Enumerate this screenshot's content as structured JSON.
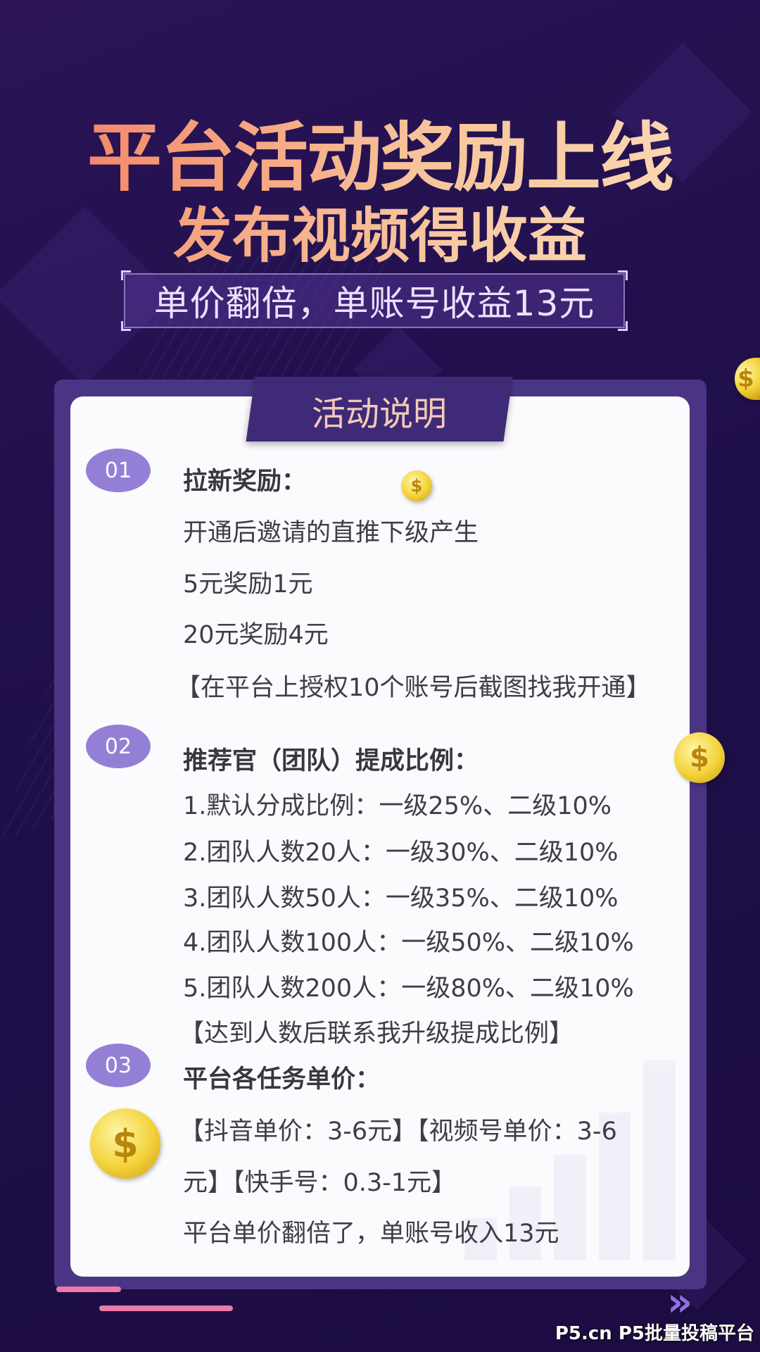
{
  "header": {
    "title": "平台活动奖励上线",
    "subtitle": "发布视频得收益",
    "highlight": "单价翻倍，单账号收益13元"
  },
  "card": {
    "tab_label": "活动说明",
    "sections": [
      {
        "badge": "01",
        "heading": "拉新奖励：",
        "lines": [
          "开通后邀请的直推下级产生",
          "5元奖励1元",
          "20元奖励4元",
          "【在平台上授权10个账号后截图找我开通】"
        ]
      },
      {
        "badge": "02",
        "heading": "推荐官（团队）提成比例：",
        "lines": [
          "1.默认分成比例：一级25%、二级10%",
          "2.团队人数20人：一级30%、二级10%",
          "3.团队人数50人：一级35%、二级10%",
          "4.团队人数100人：一级50%、二级10%",
          "5.团队人数200人：一级80%、二级10%",
          "【达到人数后联系我升级提成比例】"
        ]
      },
      {
        "badge": "03",
        "heading": "平台各任务单价：",
        "lines": [
          "【抖音单价：3-6元】【视频号单价：3-6",
          "元】【快手号：0.3-1元】",
          "平台单价翻倍了，单账号收入13元"
        ]
      }
    ]
  },
  "icons": {
    "coin": "dollar-coin-icon",
    "chevron": "double-chevron-right-icon",
    "coin_symbol": "$",
    "chevron_symbol": "»"
  },
  "watermark": "P5.cn P5批量投稿平台",
  "colors": {
    "background": "#1f0f4a",
    "card": "#4a3584",
    "badge": "#9380d6",
    "title_gradient_start": "#f27a5e",
    "title_gradient_end": "#fbdcb8"
  }
}
